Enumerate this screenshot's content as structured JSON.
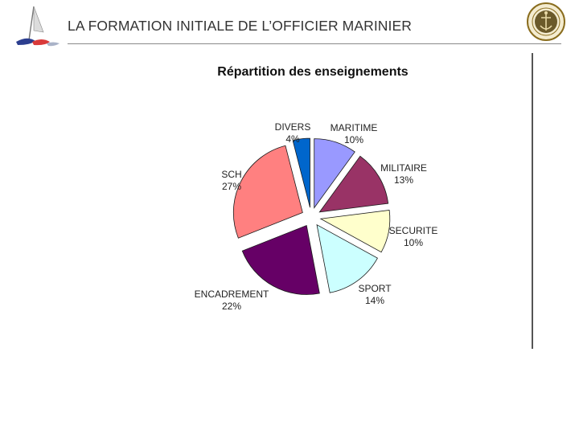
{
  "header": {
    "title": "LA FORMATION INITIALE DE L’OFFICIER MARINIER"
  },
  "chart_data": {
    "type": "pie",
    "title": "Répartition des enseignements",
    "exploded": true,
    "slices": [
      {
        "label": "MARITIME",
        "value": 10,
        "display": "10%",
        "color": "#9999ff"
      },
      {
        "label": "MILITAIRE",
        "value": 13,
        "display": "13%",
        "color": "#993366"
      },
      {
        "label": "SECURITE",
        "value": 10,
        "display": "10%",
        "color": "#ffffcc"
      },
      {
        "label": "SPORT",
        "value": 14,
        "display": "14%",
        "color": "#ccffff"
      },
      {
        "label": "ENCADREMENT",
        "value": 22,
        "display": "22%",
        "color": "#660066"
      },
      {
        "label": "SCH",
        "value": 27,
        "display": "27%",
        "color": "#ff8080"
      },
      {
        "label": "DIVERS",
        "value": 4,
        "display": "4%",
        "color": "#0066cc"
      }
    ]
  }
}
